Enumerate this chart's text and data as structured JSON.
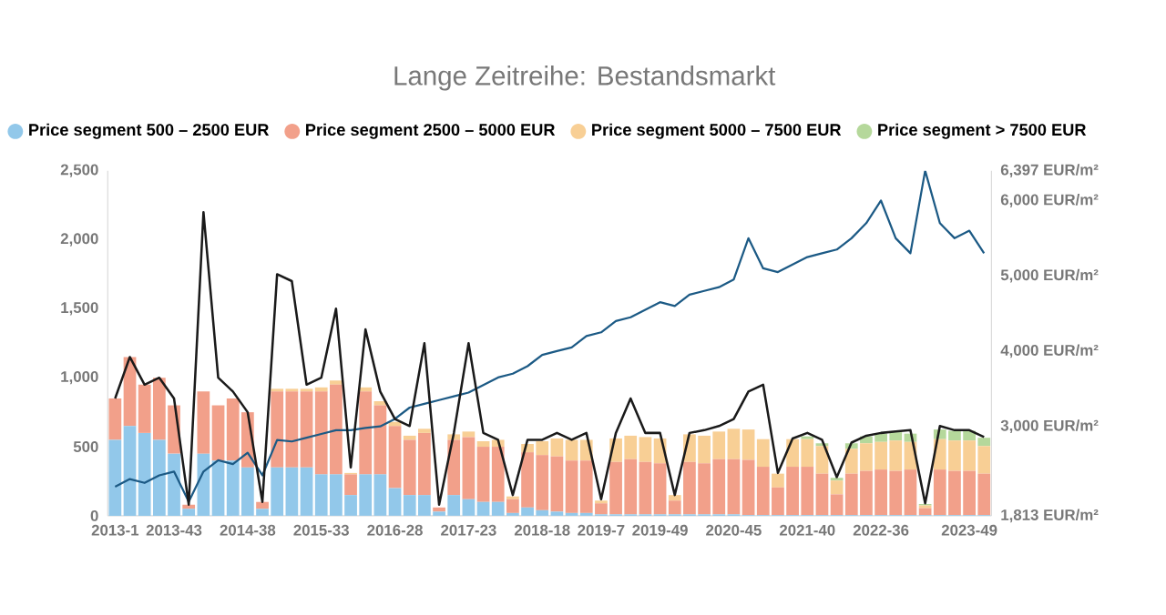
{
  "chart_data": {
    "type": "bar",
    "title": "Lange Zeitreihe: Bestandsmarkt",
    "stacked": true,
    "legend": "top",
    "categories": [
      "2013-1",
      null,
      null,
      null,
      "2013-43",
      null,
      null,
      null,
      null,
      "2014-38",
      null,
      null,
      null,
      null,
      "2015-33",
      null,
      null,
      null,
      null,
      "2016-28",
      null,
      null,
      null,
      null,
      "2017-23",
      null,
      null,
      null,
      null,
      "2018-18",
      null,
      null,
      null,
      "2019-7",
      null,
      null,
      null,
      "2019-49",
      null,
      null,
      null,
      null,
      "2020-45",
      null,
      null,
      null,
      null,
      "2021-40",
      null,
      null,
      null,
      null,
      "2022-36",
      null,
      null,
      null,
      null,
      null,
      "2023-49",
      null
    ],
    "ylim": [
      0,
      2500
    ],
    "yticks": [
      0,
      500,
      {
        "value": 1000,
        "label": "1,000"
      },
      {
        "value": 1500,
        "label": "1,500"
      },
      {
        "value": 2000,
        "label": "2,000"
      },
      {
        "value": 2500,
        "label": "2,500"
      }
    ],
    "y2lim": [
      1813,
      6397
    ],
    "y2ticks": [
      {
        "value": 1813,
        "label": "1,813 EUR/m²"
      },
      {
        "value": 3000,
        "label": "3,000 EUR/m²"
      },
      {
        "value": 4000,
        "label": "4,000 EUR/m²"
      },
      {
        "value": 5000,
        "label": "5,000 EUR/m²"
      },
      {
        "value": 6000,
        "label": "6,000 EUR/m²"
      },
      {
        "value": 6397,
        "label": "6,397 EUR/m²"
      }
    ],
    "series": [
      {
        "name": "Price segment 500 – 2500 EUR",
        "color": "#92c8ea",
        "values": [
          550,
          650,
          600,
          550,
          450,
          50,
          450,
          400,
          400,
          350,
          50,
          350,
          350,
          350,
          300,
          300,
          150,
          300,
          300,
          200,
          150,
          150,
          30,
          150,
          120,
          100,
          100,
          20,
          60,
          40,
          30,
          20,
          20,
          10,
          10,
          10,
          10,
          10,
          10,
          10,
          10,
          10,
          10,
          5,
          5,
          5,
          5,
          5,
          5,
          5,
          5,
          5,
          5,
          5,
          5,
          5,
          5,
          5,
          5,
          5
        ]
      },
      {
        "name": "Price segment 2500 – 5000 EUR",
        "color": "#f2a08a",
        "values": [
          300,
          500,
          350,
          450,
          350,
          30,
          450,
          400,
          450,
          400,
          50,
          550,
          550,
          550,
          600,
          650,
          150,
          600,
          500,
          450,
          400,
          450,
          30,
          400,
          450,
          400,
          400,
          100,
          400,
          400,
          400,
          380,
          380,
          80,
          380,
          400,
          380,
          370,
          100,
          380,
          370,
          400,
          400,
          400,
          350,
          200,
          350,
          350,
          300,
          150,
          300,
          320,
          330,
          320,
          330,
          50,
          330,
          320,
          320,
          300
        ]
      },
      {
        "name": "Price segment 5000 – 7500 EUR",
        "color": "#f8cf95",
        "values": [
          0,
          0,
          0,
          0,
          0,
          0,
          0,
          0,
          0,
          0,
          0,
          20,
          20,
          20,
          30,
          30,
          10,
          30,
          30,
          30,
          30,
          30,
          0,
          40,
          40,
          40,
          50,
          20,
          60,
          100,
          130,
          150,
          150,
          20,
          170,
          170,
          180,
          180,
          40,
          200,
          200,
          200,
          220,
          220,
          200,
          100,
          200,
          200,
          200,
          100,
          180,
          200,
          200,
          220,
          200,
          20,
          220,
          220,
          220,
          200
        ]
      },
      {
        "name": "Price segment > 7500 EUR",
        "color": "#b5d89b",
        "values": [
          0,
          0,
          0,
          0,
          0,
          0,
          0,
          0,
          0,
          0,
          0,
          0,
          0,
          0,
          0,
          0,
          0,
          0,
          0,
          0,
          0,
          0,
          0,
          0,
          0,
          0,
          0,
          0,
          0,
          0,
          0,
          0,
          0,
          0,
          0,
          0,
          0,
          0,
          0,
          0,
          0,
          0,
          0,
          0,
          0,
          0,
          0,
          20,
          20,
          20,
          40,
          50,
          60,
          60,
          60,
          10,
          70,
          70,
          70,
          60
        ]
      },
      {
        "type": "line",
        "color": "#1a1a1a",
        "values": [
          850,
          1150,
          950,
          1000,
          850,
          80,
          2200,
          1000,
          900,
          750,
          100,
          1750,
          1700,
          950,
          1000,
          1500,
          350,
          1350,
          900,
          700,
          650,
          1250,
          80,
          600,
          1250,
          600,
          550,
          150,
          550,
          550,
          600,
          550,
          600,
          120,
          600,
          850,
          600,
          600,
          150,
          600,
          620,
          650,
          700,
          900,
          950,
          310,
          560,
          600,
          550,
          280,
          530,
          580,
          600,
          610,
          620,
          90,
          650,
          620,
          620,
          570
        ]
      },
      {
        "type": "line",
        "axis": "y2",
        "color": "#1c5a85",
        "values": [
          2200,
          2300,
          2250,
          2350,
          2400,
          2000,
          2400,
          2550,
          2500,
          2650,
          2350,
          2820,
          2800,
          2850,
          2900,
          2950,
          2950,
          2980,
          3000,
          3100,
          3250,
          3300,
          3350,
          3400,
          3450,
          3550,
          3650,
          3700,
          3800,
          3950,
          4000,
          4050,
          4200,
          4250,
          4400,
          4450,
          4550,
          4650,
          4600,
          4750,
          4800,
          4850,
          4950,
          5500,
          5100,
          5050,
          5150,
          5250,
          5300,
          5350,
          5500,
          5700,
          6000,
          5500,
          5300,
          6397,
          5700,
          5500,
          5600,
          5300
        ]
      }
    ]
  }
}
